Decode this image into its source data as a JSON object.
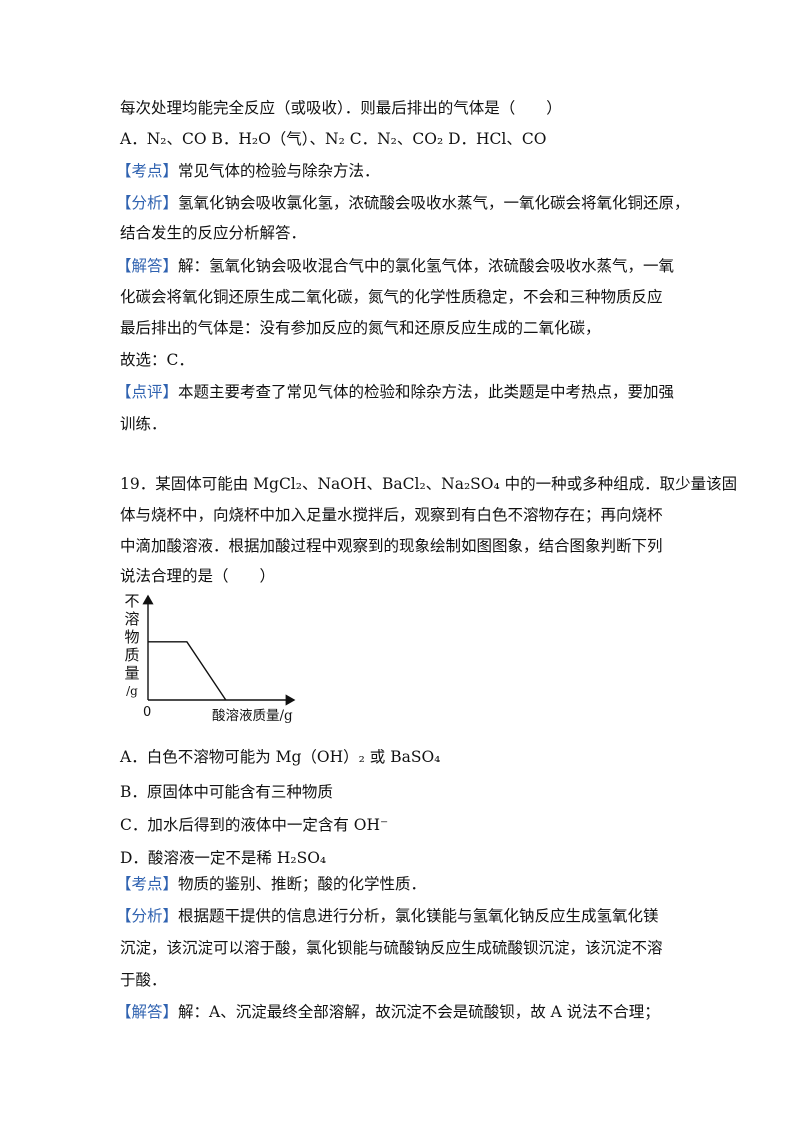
{
  "q18": {
    "stem_tail": "每次处理均能完全反应（或吸收）．则最后排出的气体是（　　）",
    "options": "A．N₂、CO  B．H₂O（气）、N₂ C．N₂、CO₂ D．HCl、CO",
    "kaodian_tag": "【考点】",
    "kaodian_text": "常见气体的检验与除杂方法．",
    "fenxi_tag": "【分析】",
    "fenxi_text_1": "氢氧化钠会吸收氯化氢，浓硫酸会吸收水蒸气，一氧化碳会将氧化铜还原，",
    "fenxi_text_2": "结合发生的反应分析解答．",
    "jieda_tag": "【解答】",
    "jieda_text_1": "解：氢氧化钠会吸收混合气中的氯化氢气体，浓硫酸会吸收水蒸气，一氧",
    "jieda_text_2": "化碳会将氧化铜还原生成二氧化碳，氮气的化学性质稳定，不会和三种物质反应",
    "jieda_text_3": "最后排出的气体是：没有参加反应的氮气和还原反应生成的二氧化碳，",
    "jieda_text_4": "故选：C．",
    "dianping_tag": "【点评】",
    "dianping_text_1": "本题主要考查了常见气体的检验和除杂方法，此类题是中考热点，要加强",
    "dianping_text_2": "训练．"
  },
  "q19": {
    "stem_1": "19．某固体可能由 MgCl₂、NaOH、BaCl₂、Na₂SO₄ 中的一种或多种组成．取少量该固",
    "stem_2": "体与烧杯中，向烧杯中加入足量水搅拌后，观察到有白色不溶物存在；再向烧杯",
    "stem_3": "中滴加酸溶液．根据加酸过程中观察到的现象绘制如图图象，结合图象判断下列",
    "stem_4": "说法合理的是（　　）",
    "option_a": "A．白色不溶物可能为 Mg（OH）₂ 或 BaSO₄",
    "option_b": "B．原固体中可能含有三种物质",
    "option_c": "C．加水后得到的液体中一定含有 OH⁻",
    "option_d": "D．酸溶液一定不是稀 H₂SO₄",
    "kaodian_tag": "【考点】",
    "kaodian_text": "物质的鉴别、推断；酸的化学性质．",
    "fenxi_tag": "【分析】",
    "fenxi_text_1": "根据题干提供的信息进行分析，氯化镁能与氢氧化钠反应生成氢氧化镁",
    "fenxi_text_2": "沉淀，该沉淀可以溶于酸，氯化钡能与硫酸钠反应生成硫酸钡沉淀，该沉淀不溶",
    "fenxi_text_3": "于酸．",
    "jieda_tag": "【解答】",
    "jieda_text_1": "解：A、沉淀最终全部溶解，故沉淀不会是硫酸钡，故 A 说法不合理；"
  },
  "chart_data": {
    "type": "line",
    "ylabel": "不溶物质量/g",
    "xlabel": "酸溶液质量/g",
    "origin_label": "0",
    "series": [
      {
        "x": [
          0,
          1,
          2
        ],
        "y": [
          1,
          1,
          0
        ]
      }
    ],
    "xlim": [
      0,
      3.6
    ],
    "ylim": [
      0,
      1.65
    ]
  }
}
